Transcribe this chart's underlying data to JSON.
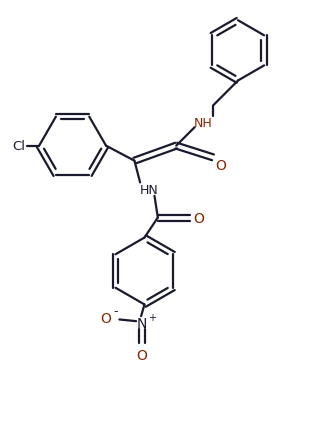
{
  "bg_color": "#ffffff",
  "bond_color": "#1a1a2e",
  "O_color": "#8B0000",
  "N_color": "#1a1a2e",
  "linewidth": 1.6,
  "figsize": [
    3.19,
    4.27
  ],
  "dpi": 100,
  "xlim": [
    0,
    9.5
  ],
  "ylim": [
    0,
    12.7
  ]
}
